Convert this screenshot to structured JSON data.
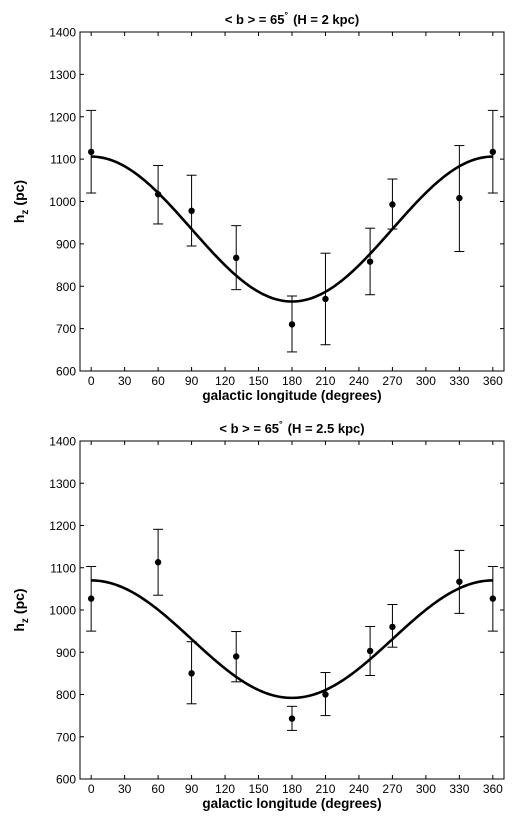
{
  "chart_data": [
    {
      "type": "scatter",
      "title": "< b > = 65",
      "title_superscript": "°",
      "title_suffix": "(H = 2 kpc)",
      "xlabel": "galactic longitude (degrees)",
      "ylabel_main": "h",
      "ylabel_sub": "z",
      "ylabel_unit": "(pc)",
      "xlim": [
        -10,
        370
      ],
      "ylim": [
        600,
        1400
      ],
      "xticks": [
        0,
        30,
        60,
        90,
        120,
        150,
        180,
        210,
        240,
        270,
        300,
        330,
        360
      ],
      "yticks": [
        600,
        700,
        800,
        900,
        1000,
        1100,
        1200,
        1300,
        1400
      ],
      "grid": false,
      "series": [
        {
          "kind": "points_with_errorbars",
          "x": [
            0,
            60,
            90,
            130,
            180,
            210,
            250,
            270,
            330,
            360
          ],
          "y": [
            1117,
            1017,
            978,
            867,
            710,
            770,
            858,
            993,
            1008,
            1117
          ],
          "err_low": [
            1020,
            947,
            895,
            792,
            645,
            662,
            780,
            935,
            882,
            1020
          ],
          "err_high": [
            1215,
            1085,
            1062,
            943,
            777,
            878,
            937,
            1053,
            1132,
            1215
          ]
        },
        {
          "kind": "fit_curve",
          "model": "cosine",
          "mean": 935,
          "amplitude": 171
        }
      ]
    },
    {
      "type": "scatter",
      "title": "< b > = 65",
      "title_superscript": "°",
      "title_suffix": "(H = 2.5 kpc)",
      "xlabel": "galactic longitude (degrees)",
      "ylabel_main": "h",
      "ylabel_sub": "z",
      "ylabel_unit": "(pc)",
      "xlim": [
        -10,
        370
      ],
      "ylim": [
        600,
        1400
      ],
      "xticks": [
        0,
        30,
        60,
        90,
        120,
        150,
        180,
        210,
        240,
        270,
        300,
        330,
        360
      ],
      "yticks": [
        600,
        700,
        800,
        900,
        1000,
        1100,
        1200,
        1300,
        1400
      ],
      "grid": false,
      "series": [
        {
          "kind": "points_with_errorbars",
          "x": [
            0,
            60,
            90,
            130,
            180,
            210,
            250,
            270,
            330,
            360
          ],
          "y": [
            1027,
            1113,
            850,
            890,
            743,
            800,
            903,
            960,
            1067,
            1027
          ],
          "err_low": [
            950,
            1035,
            778,
            830,
            715,
            750,
            845,
            912,
            992,
            950
          ],
          "err_high": [
            1103,
            1191,
            925,
            949,
            772,
            852,
            961,
            1013,
            1141,
            1103
          ]
        },
        {
          "kind": "fit_curve",
          "model": "cosine",
          "mean": 931,
          "amplitude": 139
        }
      ]
    }
  ]
}
